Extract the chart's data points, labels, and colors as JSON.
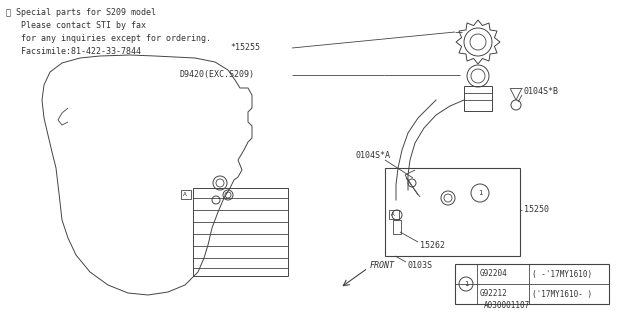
{
  "bg_color": "#ffffff",
  "line_color": "#444444",
  "text_color": "#333333",
  "font_size": 6.0,
  "title_lines": [
    "※ Special parts for S209 model",
    "   Please contact STI by fax",
    "   for any inquiries except for ordering.",
    "   Facsimile:81-422-33-7844"
  ],
  "legend_rows": [
    [
      "G92204",
      "( -'17MY1610)"
    ],
    [
      "G92212",
      "('17MY1610- )"
    ]
  ],
  "part_labels": {
    "15255_text": "*15255",
    "d9420_text": "D9420(EXC.S209)",
    "0104sb_text": "0104S*B",
    "0104sa_text": "0104S*A",
    "15250_text": "15250",
    "15262_text": "15262",
    "0103s_text": "0103S",
    "partnum_text": "A030001107"
  }
}
